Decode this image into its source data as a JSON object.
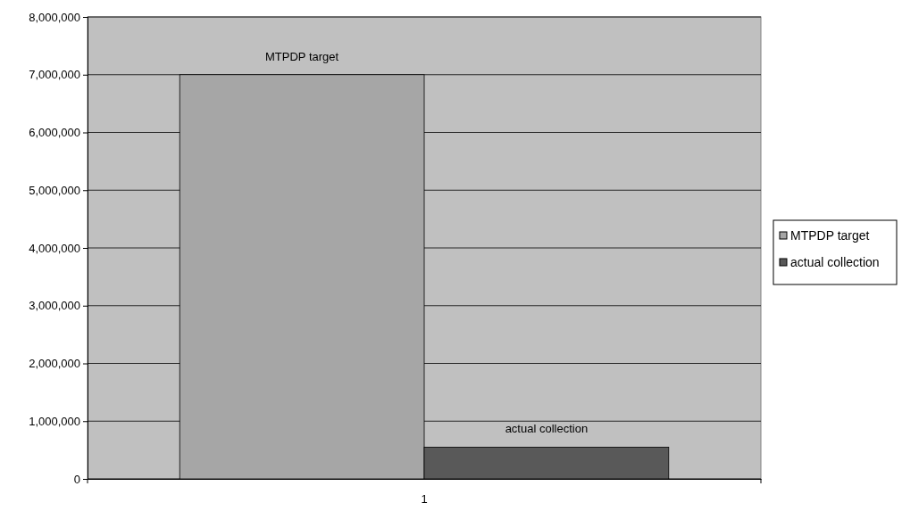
{
  "chart_data": {
    "type": "bar",
    "categories": [
      "1"
    ],
    "series": [
      {
        "name": "MTPDP target",
        "color": "#a6a6a6",
        "values": [
          7000000
        ]
      },
      {
        "name": "actual collection",
        "color": "#595959",
        "values": [
          550000
        ]
      }
    ],
    "ylim": [
      0,
      8000000
    ],
    "yticks": [
      {
        "value": 0,
        "label": "0"
      },
      {
        "value": 1000000,
        "label": "1,000,000"
      },
      {
        "value": 2000000,
        "label": "2,000,000"
      },
      {
        "value": 3000000,
        "label": "3,000,000"
      },
      {
        "value": 4000000,
        "label": "4,000,000"
      },
      {
        "value": 5000000,
        "label": "5,000,000"
      },
      {
        "value": 6000000,
        "label": "6,000,000"
      },
      {
        "value": 7000000,
        "label": "7,000,000"
      },
      {
        "value": 8000000,
        "label": "8,000,000"
      }
    ],
    "grid": "y",
    "legend": "right",
    "annotations": [
      "MTPDP target",
      "actual collection"
    ]
  }
}
